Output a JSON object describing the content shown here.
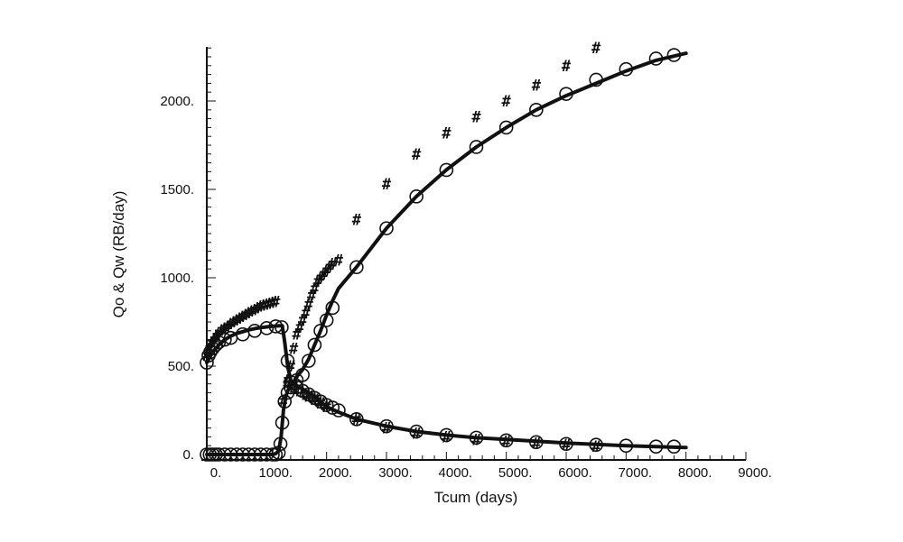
{
  "chart_data": {
    "type": "line",
    "xlabel": "Tcum  (days)",
    "ylabel": "Qo & Qw (RB/day)",
    "xlim": [
      0,
      9000
    ],
    "ylim": [
      0,
      2300
    ],
    "x_ticks": [
      0,
      1000,
      2000,
      3000,
      4000,
      5000,
      6000,
      7000,
      8000,
      9000
    ],
    "x_tick_labels": [
      "0.",
      "1000.",
      "2000.",
      "3000.",
      "4000.",
      "5000.",
      "6000.",
      "7000.",
      "8000.",
      "9000."
    ],
    "y_ticks": [
      0,
      500,
      1000,
      1500,
      2000
    ],
    "y_tick_labels": [
      "0.",
      "500.",
      "1000.",
      "1500.",
      "2000."
    ],
    "grid": false,
    "legend": "none",
    "series": [
      {
        "style": "line",
        "x": [
          0,
          100,
          200,
          300,
          400,
          500,
          600,
          700,
          800,
          900,
          1000,
          1100,
          1200,
          1260,
          1300,
          1350,
          1400,
          1500,
          1600,
          1700,
          1800,
          1900,
          2000,
          2200,
          2500,
          3000,
          3500,
          4000,
          4500,
          5000,
          5500,
          6000,
          6500,
          7000,
          7500,
          8000
        ],
        "values": [
          520,
          580,
          620,
          650,
          670,
          685,
          695,
          705,
          712,
          718,
          722,
          726,
          728,
          728,
          640,
          500,
          420,
          390,
          370,
          350,
          330,
          300,
          270,
          240,
          200,
          160,
          130,
          110,
          95,
          85,
          75,
          65,
          57,
          50,
          45,
          40
        ]
      },
      {
        "style": "circles",
        "x": [
          0,
          30,
          60,
          100,
          150,
          200,
          300,
          400,
          600,
          800,
          1000,
          1150,
          1250,
          1350,
          1400,
          1500,
          1600,
          1700,
          1800,
          1900,
          2000,
          2100,
          2200,
          2500,
          3000,
          3500,
          4000,
          4500,
          5000,
          5500,
          6000,
          6500,
          7000,
          7500,
          7800
        ],
        "values": [
          520,
          560,
          580,
          600,
          620,
          635,
          650,
          660,
          680,
          700,
          715,
          725,
          720,
          530,
          410,
          380,
          360,
          340,
          320,
          300,
          280,
          265,
          250,
          200,
          160,
          130,
          110,
          95,
          80,
          70,
          60,
          55,
          50,
          45,
          45
        ]
      },
      {
        "style": "hash",
        "x": [
          0,
          40,
          80,
          120,
          160,
          200,
          250,
          300,
          350,
          400,
          450,
          500,
          550,
          600,
          650,
          700,
          750,
          800,
          850,
          900,
          950,
          1000,
          1050,
          1100,
          1150,
          1350,
          1450,
          1550,
          1650,
          1700,
          1800,
          1900,
          2000,
          2500,
          3000,
          3500,
          4000,
          4500,
          5000,
          5500,
          6000,
          6500
        ],
        "values": [
          560,
          600,
          630,
          650,
          670,
          690,
          705,
          715,
          725,
          740,
          750,
          760,
          770,
          780,
          790,
          800,
          810,
          820,
          830,
          840,
          845,
          850,
          855,
          860,
          865,
          420,
          380,
          360,
          340,
          330,
          310,
          290,
          270,
          200,
          150,
          120,
          100,
          85,
          75,
          65,
          55,
          45
        ]
      },
      {
        "style": "line",
        "x": [
          0,
          200,
          400,
          600,
          800,
          1000,
          1100,
          1150,
          1200,
          1240,
          1280,
          1320,
          1350,
          1400,
          1450,
          1500,
          1600,
          1700,
          1800,
          1900,
          2000,
          2100,
          2200,
          2500,
          3000,
          3500,
          4000,
          4500,
          5000,
          5500,
          6000,
          6500,
          7000,
          7500,
          8000
        ],
        "values": [
          0,
          0,
          0,
          0,
          0,
          0,
          0,
          5,
          20,
          100,
          250,
          330,
          360,
          390,
          410,
          440,
          480,
          540,
          620,
          700,
          790,
          870,
          940,
          1060,
          1280,
          1460,
          1610,
          1740,
          1850,
          1950,
          2030,
          2100,
          2170,
          2230,
          2270
        ]
      },
      {
        "style": "circles",
        "x": [
          0,
          50,
          100,
          150,
          200,
          300,
          400,
          500,
          600,
          700,
          800,
          900,
          1000,
          1100,
          1150,
          1200,
          1230,
          1260,
          1300,
          1350,
          1400,
          1500,
          1600,
          1700,
          1800,
          1900,
          2000,
          2100,
          2500,
          3000,
          3500,
          4000,
          4500,
          5000,
          5500,
          6000,
          6500,
          7000,
          7500,
          7800
        ],
        "values": [
          0,
          0,
          0,
          0,
          0,
          0,
          0,
          0,
          0,
          0,
          0,
          0,
          0,
          0,
          0,
          10,
          60,
          180,
          300,
          350,
          380,
          420,
          450,
          530,
          620,
          700,
          760,
          830,
          1060,
          1280,
          1460,
          1610,
          1740,
          1850,
          1950,
          2040,
          2120,
          2180,
          2240,
          2260
        ]
      },
      {
        "style": "hash",
        "x": [
          1280,
          1350,
          1400,
          1450,
          1500,
          1550,
          1600,
          1650,
          1700,
          1750,
          1800,
          1850,
          1900,
          1950,
          2000,
          2050,
          2100,
          2200,
          2500,
          3000,
          3500,
          4000,
          4500,
          5000,
          5500,
          6000,
          6500
        ],
        "values": [
          300,
          400,
          500,
          600,
          680,
          720,
          760,
          800,
          850,
          900,
          940,
          980,
          1000,
          1020,
          1040,
          1060,
          1080,
          1100,
          1330,
          1530,
          1700,
          1820,
          1910,
          2000,
          2090,
          2200,
          2300
        ]
      }
    ]
  }
}
